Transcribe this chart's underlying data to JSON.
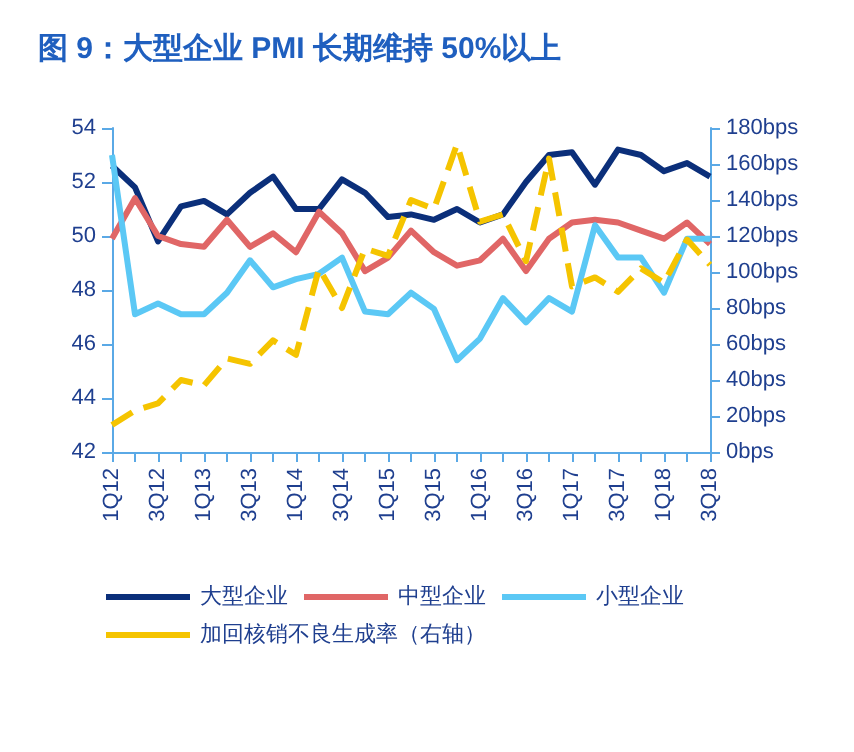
{
  "chart_data": {
    "type": "line",
    "title": "图 9：大型企业 PMI 长期维持 50%以上",
    "categories": [
      "1Q12",
      null,
      "3Q12",
      null,
      "1Q13",
      null,
      "3Q13",
      null,
      "1Q14",
      null,
      "3Q14",
      null,
      "1Q15",
      null,
      "3Q15",
      null,
      "1Q16",
      null,
      "3Q16",
      null,
      "1Q17",
      null,
      "3Q17",
      null,
      "1Q18",
      null,
      "3Q18"
    ],
    "series": [
      {
        "name": "大型企业",
        "color": "#0b2f7a",
        "values": [
          52.6,
          51.8,
          49.8,
          51.1,
          51.3,
          50.8,
          51.6,
          52.2,
          51.0,
          51.0,
          52.1,
          51.6,
          50.7,
          50.8,
          50.6,
          51.0,
          50.5,
          50.8,
          52.0,
          53.0,
          53.1,
          51.9,
          53.2,
          53.0,
          52.4,
          52.7,
          52.2
        ]
      },
      {
        "name": "中型企业",
        "color": "#e06666",
        "values": [
          49.9,
          51.4,
          50.0,
          49.7,
          49.6,
          50.6,
          49.6,
          50.1,
          49.4,
          50.9,
          50.1,
          48.7,
          49.2,
          50.2,
          49.4,
          48.9,
          49.1,
          49.9,
          48.7,
          49.9,
          50.5,
          50.6,
          50.5,
          50.2,
          49.9,
          50.5,
          49.7
        ]
      },
      {
        "name": "小型企业",
        "color": "#5bc8f5",
        "values": [
          53.0,
          47.1,
          47.5,
          47.1,
          47.1,
          47.9,
          49.1,
          48.1,
          48.4,
          48.6,
          49.2,
          47.2,
          47.1,
          47.9,
          47.3,
          45.4,
          46.2,
          47.7,
          46.8,
          47.7,
          47.2,
          50.4,
          49.2,
          49.2,
          47.9,
          49.9,
          49.9
        ]
      },
      {
        "name": "加回核销不良生成率（右轴）",
        "color": "#f5c400",
        "axis": "y2",
        "line_style": "dashed",
        "values": [
          15,
          23,
          27,
          40,
          37,
          52,
          49,
          62,
          54,
          102,
          80,
          113,
          109,
          140,
          135,
          171,
          128,
          132,
          106,
          163,
          92,
          97,
          89,
          102,
          94,
          118,
          104
        ]
      }
    ],
    "ylim": [
      42,
      54
    ],
    "yticks": [
      42,
      44,
      46,
      48,
      50,
      52,
      54
    ],
    "y2lim": [
      0,
      180
    ],
    "y2ticks": [
      {
        "value": 0,
        "label": "0bps"
      },
      {
        "value": 20,
        "label": "20bps"
      },
      {
        "value": 40,
        "label": "40bps"
      },
      {
        "value": 60,
        "label": "60bps"
      },
      {
        "value": 80,
        "label": "80bps"
      },
      {
        "value": 100,
        "label": "100bps"
      },
      {
        "value": 120,
        "label": "120bps"
      },
      {
        "value": 140,
        "label": "140bps"
      },
      {
        "value": 160,
        "label": "160bps"
      },
      {
        "value": 180,
        "label": "180bps"
      }
    ],
    "grid": false,
    "legend": "bottom",
    "marker": "none",
    "line_style": "solid"
  }
}
